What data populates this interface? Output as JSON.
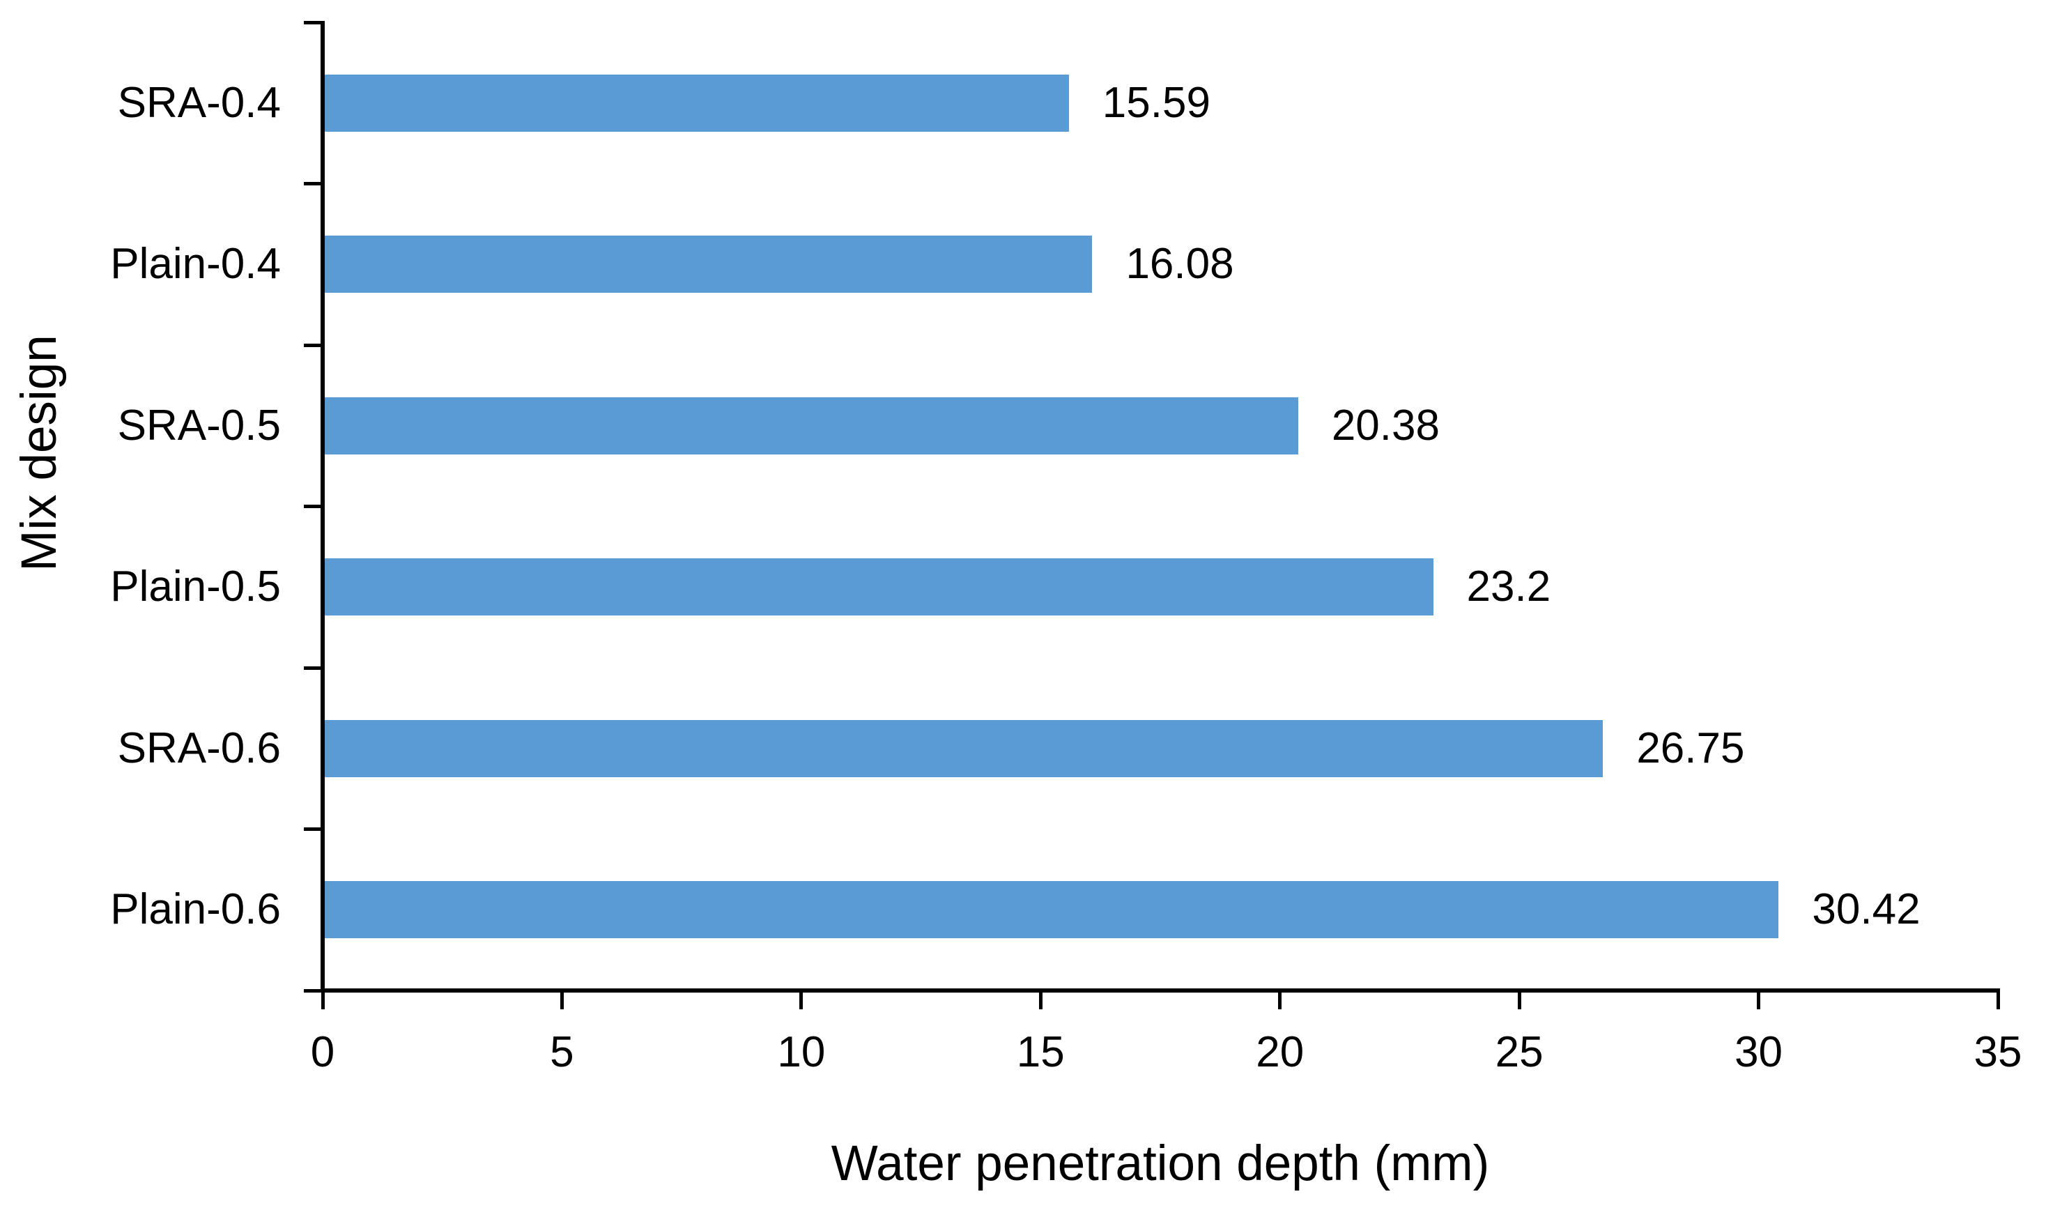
{
  "chart_data": {
    "type": "bar",
    "orientation": "horizontal",
    "title": "",
    "xlabel": "Water penetration depth (mm)",
    "ylabel": "Mix design",
    "categories": [
      "SRA-0.4",
      "Plain-0.4",
      "SRA-0.5",
      "Plain-0.5",
      "SRA-0.6",
      "Plain-0.6"
    ],
    "values": [
      15.59,
      16.08,
      20.38,
      23.2,
      26.75,
      30.42
    ],
    "value_labels": [
      "15.59",
      "16.08",
      "20.38",
      "23.2",
      "26.75",
      "30.42"
    ],
    "xlim": [
      0,
      35
    ],
    "xticks": [
      0,
      5,
      10,
      15,
      20,
      25,
      30,
      35
    ],
    "xtick_labels": [
      "0",
      "5",
      "10",
      "15",
      "20",
      "25",
      "30",
      "35"
    ],
    "bar_color": "#5B9BD5",
    "axis_color": "#000000",
    "text_color": "#000000",
    "background_color": "#FFFFFF",
    "grid": "off",
    "legend": "none",
    "data_labels": "outside-end"
  }
}
